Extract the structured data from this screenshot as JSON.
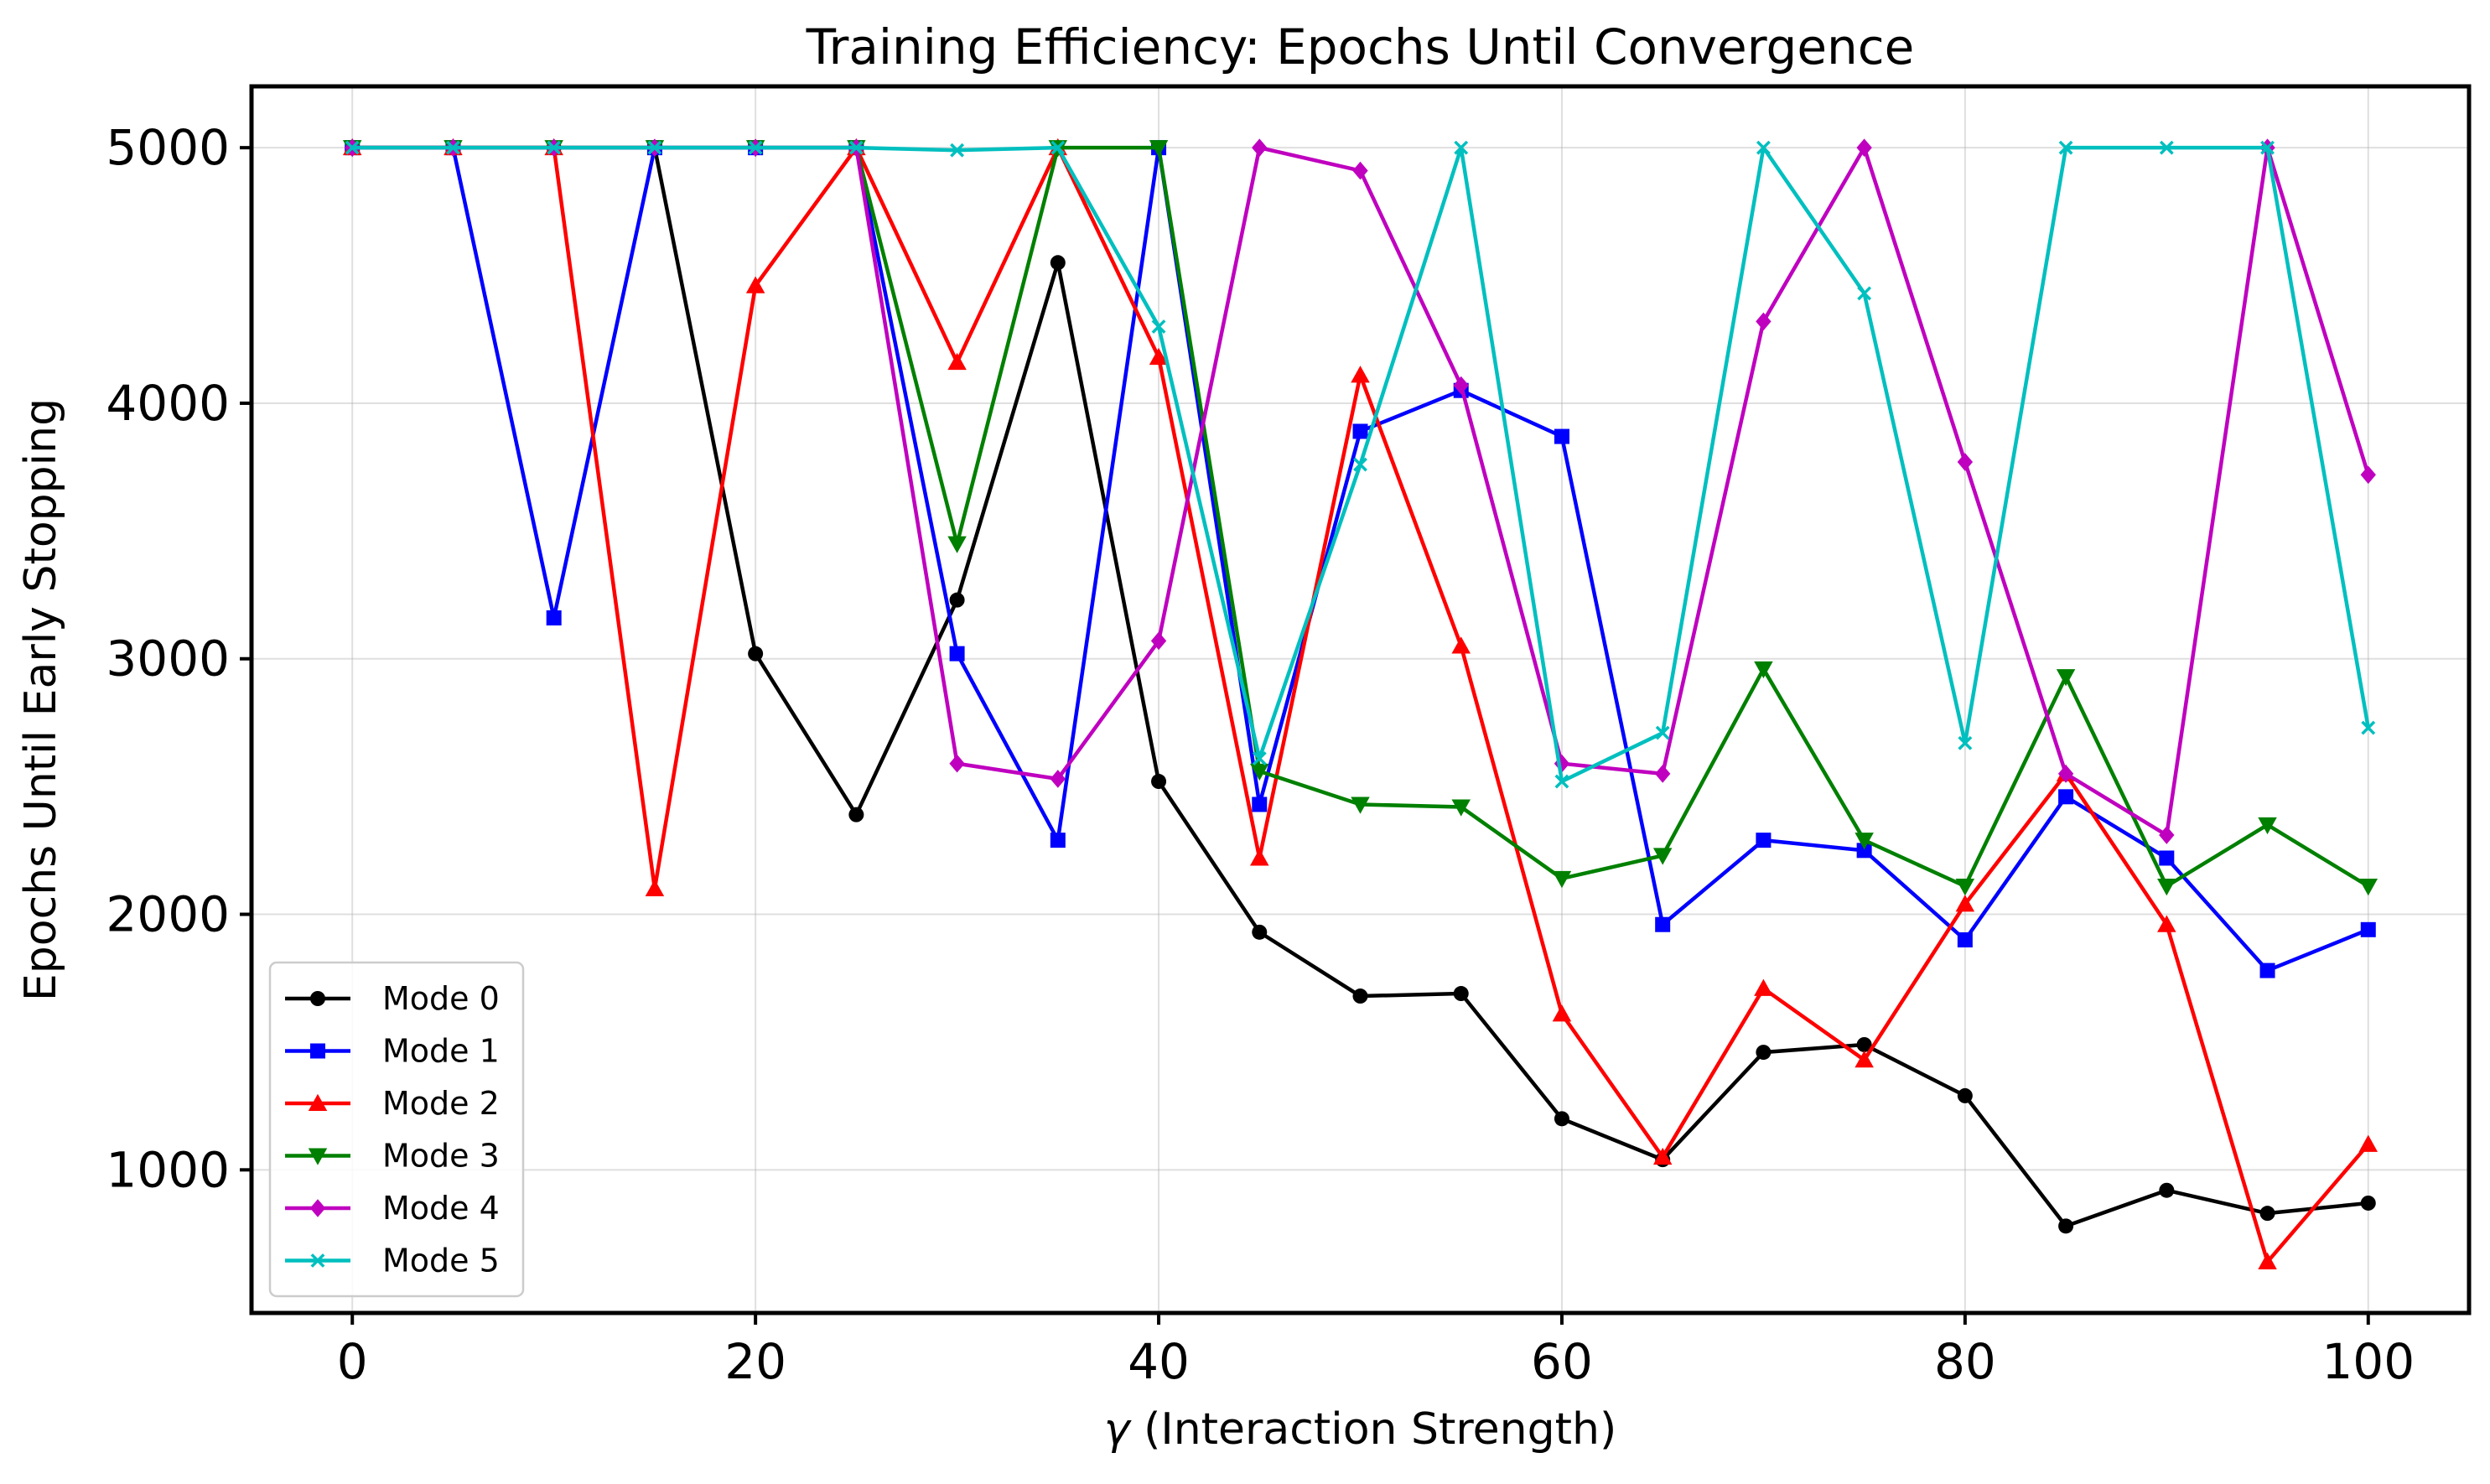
{
  "chart_data": {
    "type": "line",
    "title": "Training Efficiency: Epochs Until Convergence",
    "xlabel_symbol": "γ",
    "xlabel": " (Interaction Strength)",
    "ylabel": "Epochs Until Early Stopping",
    "xlim": [
      -5,
      105
    ],
    "ylim": [
      440,
      5240
    ],
    "xticks": [
      0,
      20,
      40,
      60,
      80,
      100
    ],
    "yticks": [
      1000,
      2000,
      3000,
      4000,
      5000
    ],
    "grid": true,
    "legend_position": "lower-left",
    "x": [
      0,
      5,
      10,
      15,
      20,
      25,
      30,
      35,
      40,
      45,
      50,
      55,
      60,
      65,
      70,
      75,
      80,
      85,
      90,
      95,
      100
    ],
    "series": [
      {
        "name": "Mode 0",
        "color": "#000000",
        "marker": "circle",
        "values": [
          5000,
          5000,
          5000,
          5000,
          3020,
          2390,
          3230,
          4550,
          2520,
          1930,
          1680,
          1690,
          1200,
          1040,
          1460,
          1490,
          1290,
          780,
          920,
          830,
          870
        ]
      },
      {
        "name": "Mode 1",
        "color": "#0000ff",
        "marker": "square",
        "values": [
          5000,
          5000,
          3160,
          5000,
          5000,
          5000,
          3020,
          2290,
          5000,
          2430,
          3890,
          4050,
          3870,
          1960,
          2290,
          2250,
          1900,
          2460,
          2220,
          1780,
          1940
        ]
      },
      {
        "name": "Mode 2",
        "color": "#ff0000",
        "marker": "triangle-up",
        "values": [
          5000,
          5000,
          5000,
          2100,
          4460,
          5000,
          4160,
          5000,
          4180,
          2220,
          4110,
          3050,
          1610,
          1050,
          1710,
          1430,
          2040,
          2550,
          1960,
          640,
          1100
        ]
      },
      {
        "name": "Mode 3",
        "color": "#008000",
        "marker": "triangle-down",
        "values": [
          5000,
          5000,
          5000,
          5000,
          5000,
          5000,
          3450,
          5000,
          5000,
          2560,
          2430,
          2420,
          2140,
          2230,
          2960,
          2290,
          2110,
          2930,
          2110,
          2350,
          2110
        ]
      },
      {
        "name": "Mode 4",
        "color": "#bf00bf",
        "marker": "diamond",
        "values": [
          5000,
          5000,
          5000,
          5000,
          5000,
          5000,
          2590,
          2530,
          3070,
          5000,
          4910,
          4070,
          2590,
          2550,
          4320,
          5000,
          3770,
          2550,
          2310,
          5000,
          3720
        ]
      },
      {
        "name": "Mode 5",
        "color": "#00bfbf",
        "marker": "x",
        "values": [
          5000,
          5000,
          5000,
          5000,
          5000,
          5000,
          4990,
          5000,
          4300,
          2610,
          3760,
          5000,
          2520,
          2710,
          5000,
          4430,
          2670,
          5000,
          5000,
          5000,
          2730
        ]
      }
    ]
  }
}
